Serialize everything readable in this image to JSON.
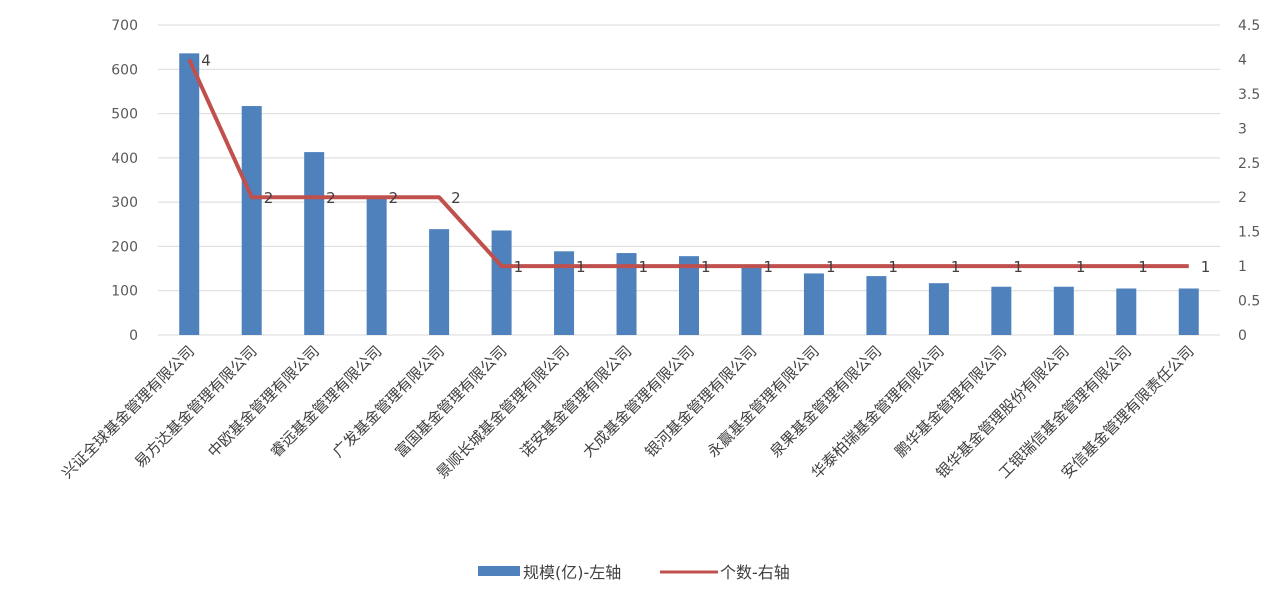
{
  "chart_data": {
    "type": "bar",
    "title": "",
    "categories": [
      "兴证全球基金管理有限公司",
      "易方达基金管理有限公司",
      "中欧基金管理有限公司",
      "睿远基金管理有限公司",
      "广发基金管理有限公司",
      "富国基金管理有限公司",
      "景顺长城基金管理有限公司",
      "诺安基金管理有限公司",
      "大成基金管理有限公司",
      "银河基金管理有限公司",
      "永赢基金管理有限公司",
      "泉果基金管理有限公司",
      "华泰柏瑞基金管理有限公司",
      "鹏华基金管理有限公司",
      "银华基金管理股份有限公司",
      "工银瑞信基金管理有限公司",
      "安信基金管理有限责任公司"
    ],
    "series": [
      {
        "name": "规模(亿)-左轴",
        "type": "bar",
        "axis": "left",
        "color": "#4f81bd",
        "values": [
          636,
          517,
          413,
          310,
          239,
          236,
          189,
          185,
          178,
          158,
          139,
          133,
          117,
          109,
          109,
          105,
          105
        ]
      },
      {
        "name": "个数-右轴",
        "type": "line",
        "axis": "right",
        "color": "#c0504d",
        "values": [
          4,
          2,
          2,
          2,
          2,
          1,
          1,
          1,
          1,
          1,
          1,
          1,
          1,
          1,
          1,
          1,
          1
        ],
        "data_labels": [
          "4",
          "2",
          "2",
          "2",
          "2",
          "1",
          "1",
          "1",
          "1",
          "1",
          "1",
          "1",
          "1",
          "1",
          "1",
          "1",
          "1"
        ]
      }
    ],
    "y_left": {
      "ylim": [
        0,
        700
      ],
      "ticks": [
        "0",
        "100",
        "200",
        "300",
        "400",
        "500",
        "600",
        "700"
      ]
    },
    "y_right": {
      "ylim": [
        0,
        4.5
      ],
      "ticks": [
        "0",
        "0.5",
        "1",
        "1.5",
        "2",
        "2.5",
        "3",
        "3.5",
        "4",
        "4.5"
      ]
    },
    "grid": true,
    "legend_position": "bottom",
    "legend": [
      "规模(亿)-左轴",
      "个数-右轴"
    ]
  }
}
